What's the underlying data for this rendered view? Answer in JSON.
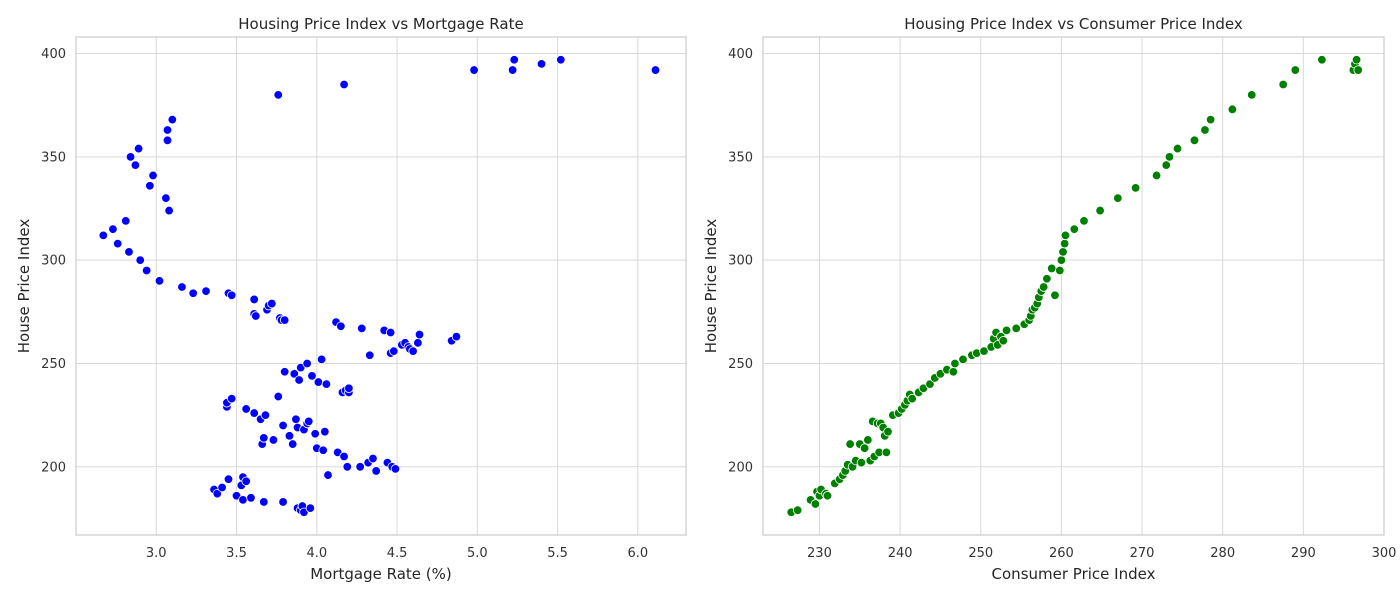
{
  "chart_data": [
    {
      "type": "scatter",
      "title": "Housing Price Index vs Mortgage Rate",
      "xlabel": "Mortgage Rate (%)",
      "ylabel": "House Price Index",
      "xlim": [
        2.5,
        6.3
      ],
      "ylim": [
        167,
        408
      ],
      "xticks": [
        3.0,
        3.5,
        4.0,
        4.5,
        5.0,
        5.5,
        6.0
      ],
      "yticks": [
        200,
        250,
        300,
        350,
        400
      ],
      "xtick_labels": [
        "3.0",
        "3.5",
        "4.0",
        "4.5",
        "5.0",
        "5.5",
        "6.0"
      ],
      "ytick_labels": [
        "200",
        "250",
        "300",
        "350",
        "400"
      ],
      "grid": true,
      "color": "#0000ff",
      "x": [
        2.67,
        2.73,
        2.76,
        2.81,
        2.83,
        2.84,
        2.87,
        2.89,
        2.9,
        2.94,
        2.96,
        2.98,
        3.02,
        3.06,
        3.07,
        3.07,
        3.08,
        3.1,
        3.16,
        3.23,
        3.31,
        3.36,
        3.38,
        3.41,
        3.44,
        3.44,
        3.45,
        3.45,
        3.47,
        3.47,
        3.5,
        3.53,
        3.54,
        3.54,
        3.56,
        3.56,
        3.59,
        3.61,
        3.61,
        3.61,
        3.62,
        3.65,
        3.66,
        3.67,
        3.67,
        3.68,
        3.69,
        3.7,
        3.72,
        3.73,
        3.76,
        3.76,
        3.77,
        3.78,
        3.79,
        3.79,
        3.8,
        3.8,
        3.83,
        3.85,
        3.86,
        3.87,
        3.88,
        3.88,
        3.89,
        3.9,
        3.9,
        3.91,
        3.92,
        3.92,
        3.94,
        3.94,
        3.95,
        3.96,
        3.97,
        3.99,
        4.0,
        4.01,
        4.03,
        4.04,
        4.05,
        4.06,
        4.07,
        4.12,
        4.13,
        4.15,
        4.16,
        4.17,
        4.17,
        4.18,
        4.19,
        4.2,
        4.2,
        4.27,
        4.28,
        4.32,
        4.33,
        4.35,
        4.37,
        4.42,
        4.44,
        4.46,
        4.46,
        4.47,
        4.48,
        4.49,
        4.53,
        4.55,
        4.57,
        4.58,
        4.6,
        4.63,
        4.64,
        4.84,
        4.87,
        4.98,
        5.22,
        5.23,
        5.4,
        5.52,
        6.11
      ],
      "y": [
        312,
        315,
        308,
        319,
        304,
        350,
        346,
        354,
        300,
        295,
        336,
        341,
        290,
        330,
        358,
        363,
        324,
        368,
        287,
        284,
        285,
        189,
        187,
        190,
        229,
        231,
        194,
        284,
        233,
        283,
        186,
        191,
        184,
        195,
        228,
        193,
        185,
        226,
        274,
        281,
        273,
        223,
        211,
        214,
        183,
        225,
        276,
        278,
        279,
        213,
        234,
        380,
        272,
        271,
        220,
        183,
        246,
        271,
        215,
        211,
        245,
        223,
        219,
        180,
        242,
        248,
        179,
        181,
        218,
        178,
        221,
        250,
        222,
        180,
        244,
        216,
        209,
        241,
        252,
        208,
        217,
        240,
        196,
        270,
        207,
        268,
        236,
        205,
        385,
        237,
        200,
        236,
        238,
        200,
        267,
        202,
        254,
        204,
        198,
        266,
        202,
        255,
        265,
        200,
        256,
        199,
        259,
        260,
        258,
        257,
        256,
        260,
        264,
        261,
        263,
        392,
        392,
        397,
        395,
        397,
        392
      ]
    },
    {
      "type": "scatter",
      "title": "Housing Price Index vs Consumer Price Index",
      "xlabel": "Consumer Price Index",
      "ylabel": "House Price Index",
      "xlim": [
        223.0,
        300.0
      ],
      "ylim": [
        167,
        408
      ],
      "xticks": [
        230,
        240,
        250,
        260,
        270,
        280,
        290,
        300
      ],
      "yticks": [
        200,
        250,
        300,
        350,
        400
      ],
      "xtick_labels": [
        "230",
        "240",
        "250",
        "260",
        "270",
        "280",
        "290",
        "300"
      ],
      "ytick_labels": [
        "200",
        "250",
        "300",
        "350",
        "400"
      ],
      "grid": true,
      "color": "#008000",
      "x": [
        226.5,
        227.3,
        228.9,
        229.5,
        229.7,
        230.0,
        230.2,
        230.8,
        231.0,
        231.9,
        232.5,
        232.9,
        233.2,
        233.5,
        233.8,
        234.1,
        234.5,
        235.0,
        235.2,
        235.6,
        236.0,
        236.3,
        236.6,
        236.8,
        237.2,
        237.4,
        237.6,
        237.9,
        238.1,
        238.3,
        238.5,
        239.1,
        239.8,
        240.2,
        240.6,
        240.9,
        241.2,
        241.5,
        242.3,
        242.9,
        243.7,
        244.3,
        245.0,
        245.8,
        246.6,
        246.8,
        247.8,
        248.9,
        249.5,
        250.4,
        251.3,
        251.6,
        251.9,
        252.1,
        252.5,
        252.8,
        253.2,
        254.4,
        255.4,
        256.0,
        256.2,
        256.4,
        256.7,
        257.0,
        257.2,
        257.5,
        257.8,
        258.2,
        258.8,
        259.2,
        259.8,
        260.0,
        260.2,
        260.4,
        260.5,
        261.6,
        262.8,
        264.8,
        267.0,
        269.2,
        271.8,
        273.0,
        273.4,
        274.4,
        276.5,
        277.8,
        278.5,
        281.2,
        283.6,
        287.5,
        289.0,
        292.3,
        296.2,
        296.4,
        296.6,
        296.8
      ],
      "y": [
        178,
        179,
        184,
        182,
        188,
        186,
        189,
        187,
        186,
        192,
        194,
        196,
        198,
        201,
        211,
        200,
        203,
        211,
        202,
        209,
        213,
        203,
        222,
        205,
        221,
        207,
        221,
        219,
        215,
        207,
        217,
        225,
        226,
        228,
        230,
        232,
        235,
        233,
        236,
        238,
        240,
        243,
        245,
        247,
        246,
        250,
        252,
        254,
        255,
        256,
        258,
        262,
        265,
        259,
        263,
        261,
        266,
        267,
        269,
        271,
        273,
        276,
        277,
        279,
        282,
        285,
        287,
        291,
        296,
        283,
        295,
        300,
        304,
        308,
        312,
        315,
        319,
        324,
        330,
        335,
        341,
        346,
        350,
        354,
        358,
        363,
        368,
        373,
        380,
        385,
        392,
        397,
        392,
        395,
        397,
        392
      ]
    }
  ]
}
